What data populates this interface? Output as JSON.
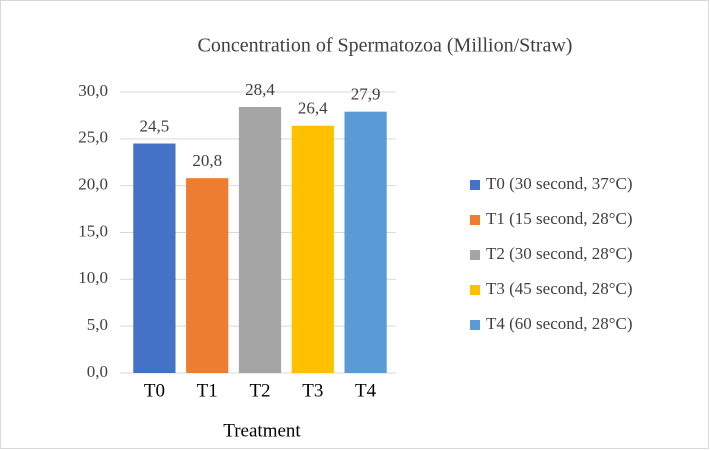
{
  "chart_data": {
    "type": "bar",
    "title": "Concentration of Spermatozoa (Million/Straw)",
    "x_label": "Treatment",
    "categories": [
      "T0",
      "T1",
      "T2",
      "T3",
      "T4"
    ],
    "values": [
      24.5,
      20.8,
      28.4,
      26.4,
      27.9
    ],
    "value_labels": [
      "24,5",
      "20,8",
      "28,4",
      "26,4",
      "27,9"
    ],
    "colors": [
      "#4472c4",
      "#ed7d31",
      "#a5a5a5",
      "#ffc000",
      "#5b9bd5"
    ],
    "legend_labels": [
      "T0 (30 second, 37°C)",
      "T1 (15 second, 28°C)",
      "T2 (30 second, 28°C)",
      "T3 (45 second, 28°C)",
      "T4 (60 second, 28°C)"
    ],
    "legend_position": "right",
    "ylim": [
      0,
      30
    ],
    "yticks": [
      {
        "value": 0,
        "label": "0,0"
      },
      {
        "value": 5,
        "label": "5,0"
      },
      {
        "value": 10,
        "label": "10,0"
      },
      {
        "value": 15,
        "label": "15,0"
      },
      {
        "value": 20,
        "label": "20,0"
      },
      {
        "value": 25,
        "label": "25,0"
      },
      {
        "value": 30,
        "label": "30,0"
      }
    ],
    "grid": true
  }
}
